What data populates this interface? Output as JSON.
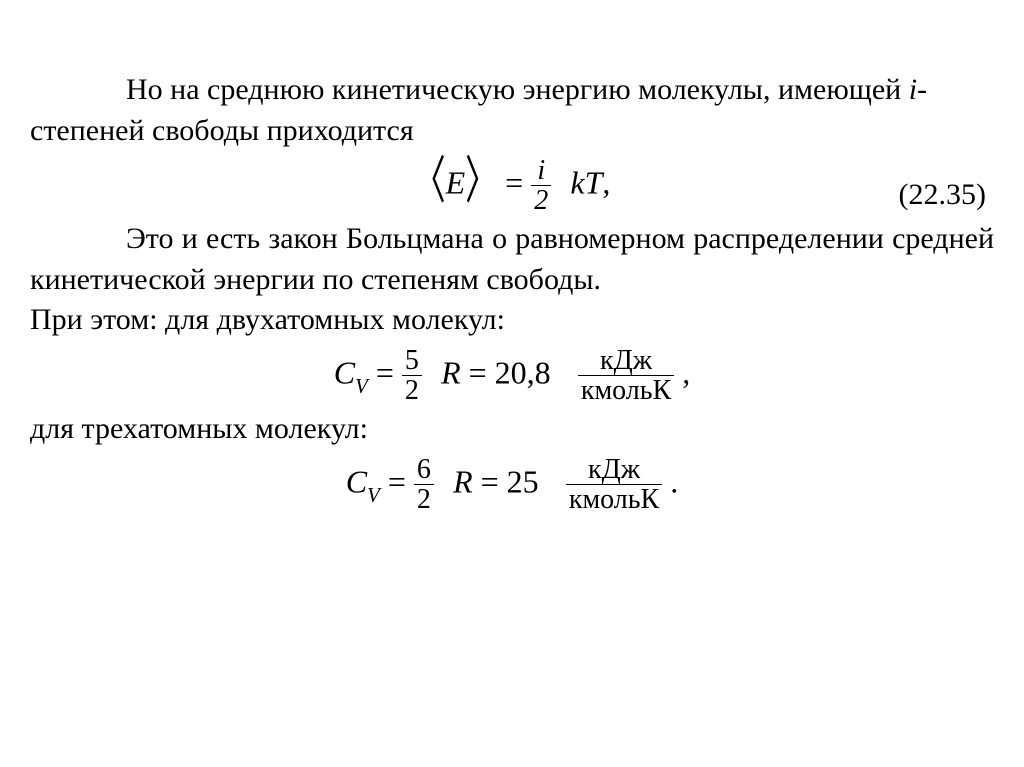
{
  "para1": "Но на среднюю кинетическую энергию молекулы, имеющей ",
  "para1_i": "i",
  "para1_tail": "-степеней свободы приходится",
  "eq1": {
    "lhs_open": "〈",
    "lhs_var": "E",
    "lhs_close": "〉",
    "eq": " = ",
    "frac_num": "i",
    "frac_den": "2",
    "k": "kT",
    "comma": ",",
    "number": "(22.35)"
  },
  "para2": "Это и есть закон Больцмана о равномерном распределении средней кинетической энергии по степеням свободы.",
  "para3": "При этом: для двухатомных молекул:",
  "eq2": {
    "C": "C",
    "Vsub": "V",
    "eq1": " = ",
    "frac_num": "5",
    "frac_den": "2",
    "R": "R",
    "eq2": " = ",
    "val": "20,8",
    "unit_num": "кДж",
    "unit_den": "кмольК",
    "tail": ","
  },
  "para4": "для трехатомных молекул:",
  "eq3": {
    "C": "C",
    "Vsub": "V",
    "eq1": " = ",
    "frac_num": "6",
    "frac_den": "2",
    "R": "R",
    "eq2": " = ",
    "val": "25",
    "unit_num": "кДж",
    "unit_den": "кмольК",
    "tail": "."
  }
}
